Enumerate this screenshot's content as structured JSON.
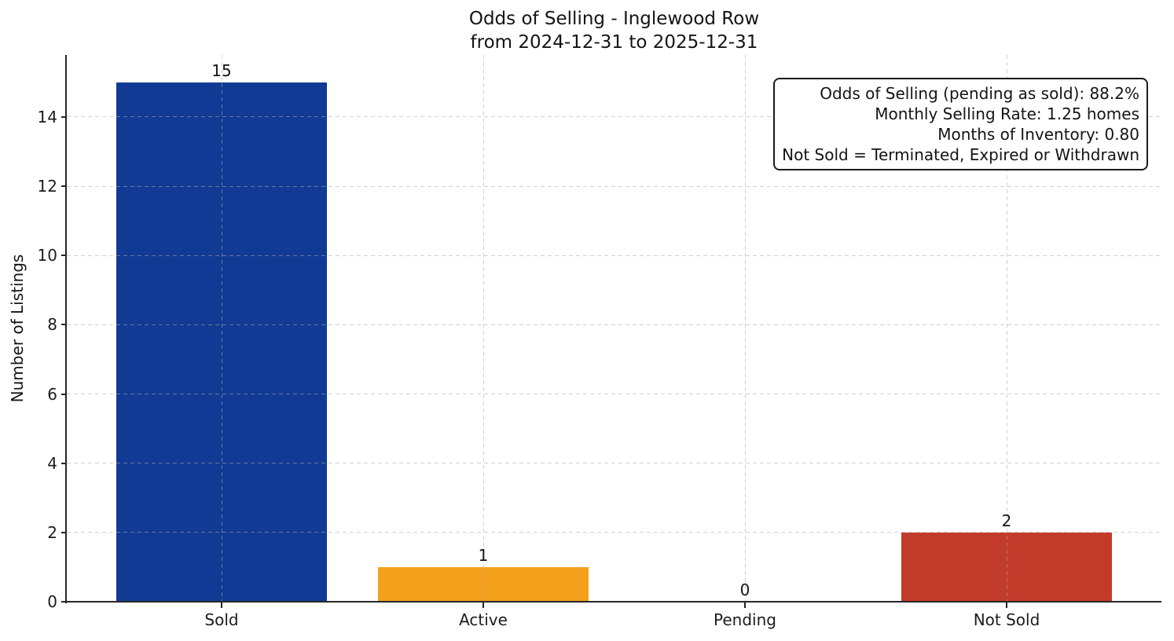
{
  "figure": {
    "title_line1": "Odds of Selling - Inglewood Row",
    "title_line2": "from 2024-12-31 to 2025-12-31"
  },
  "annotation_box": {
    "lines": [
      "Odds of Selling (pending as sold): 88.2%",
      "Monthly Selling Rate: 1.25 homes",
      "Months of Inventory: 0.80",
      "Not Sold = Terminated, Expired or Withdrawn"
    ]
  },
  "chart_data": {
    "type": "bar",
    "title": "Odds of Selling - Inglewood Row\nfrom 2024-12-31 to 2025-12-31",
    "categories": [
      "Sold",
      "Active",
      "Pending",
      "Not Sold"
    ],
    "values": [
      15,
      1,
      0,
      2
    ],
    "bar_labels": [
      "15",
      "1",
      "0",
      "2"
    ],
    "bar_colors": [
      "#113a94",
      "#f3a11c",
      null,
      "#c23b2b"
    ],
    "ylabel": "Number of Listings",
    "yticks": [
      0,
      2,
      4,
      6,
      8,
      10,
      12,
      14
    ],
    "ylim": [
      0,
      15.79
    ],
    "grid": true,
    "grid_style": "dashed",
    "legend": null
  },
  "colors": {
    "sold_bar": "#113a94",
    "active_bar": "#f3a11c",
    "not_sold_bar": "#c23b2b",
    "axis": "#262626",
    "text": "#1a1a1a",
    "background": "#ffffff"
  }
}
